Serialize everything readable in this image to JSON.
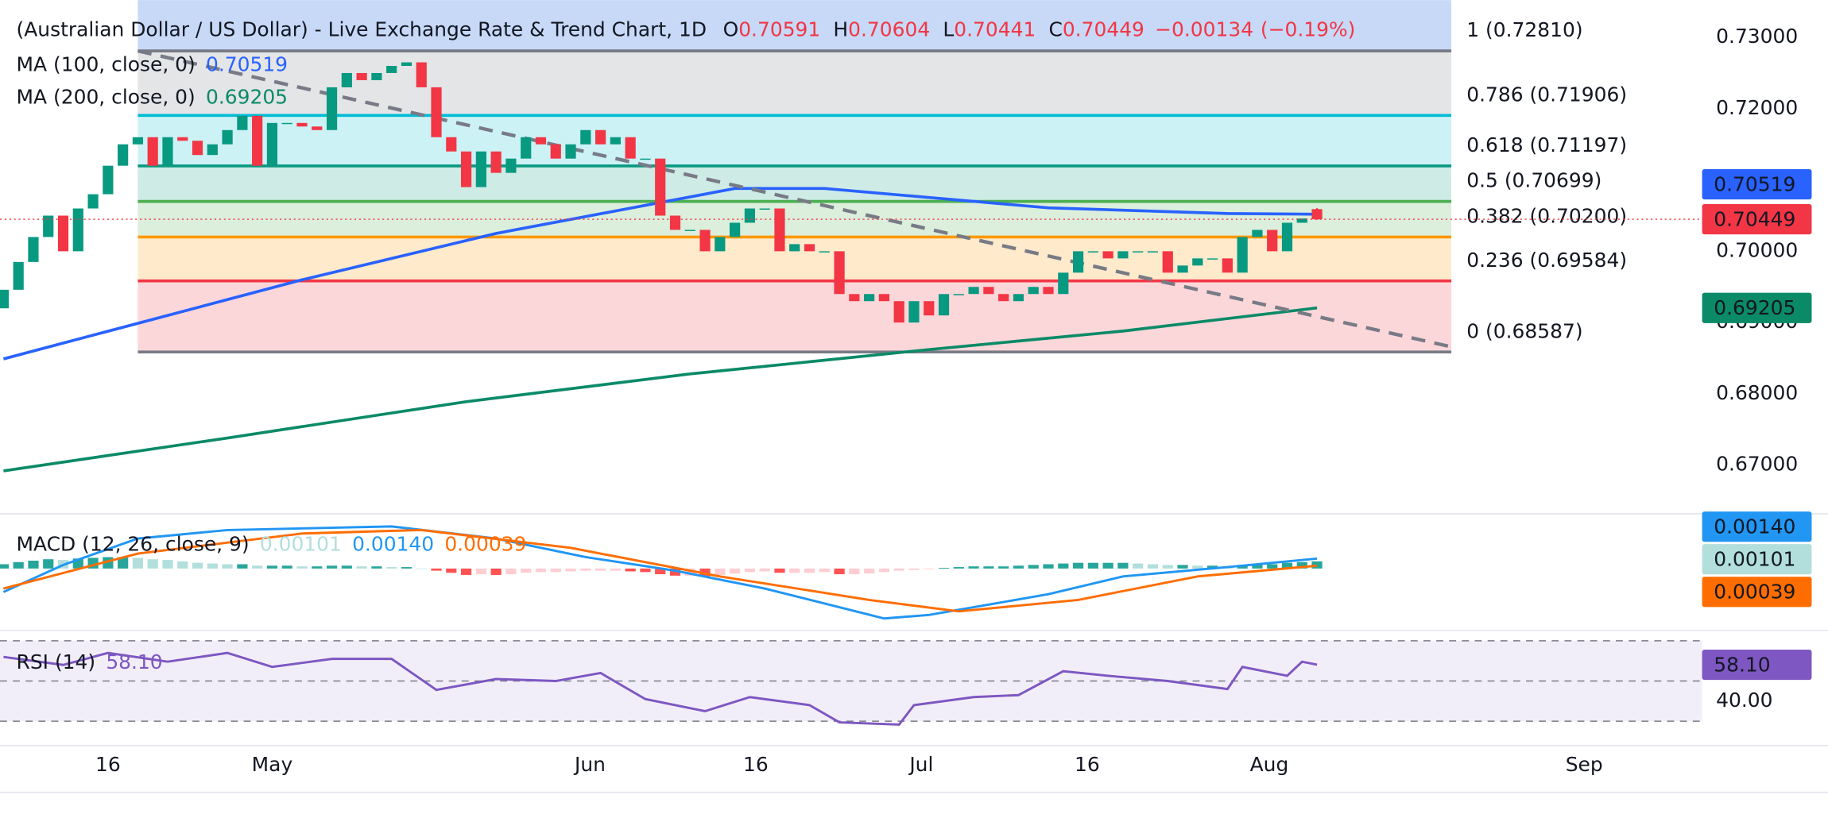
{
  "chart_data": {
    "type": "candlestick",
    "title": "(Australian Dollar / US Dollar) - Live Exchange Rate & Trend Chart, 1D",
    "ohlc_labels": [
      "O",
      "H",
      "L",
      "C"
    ],
    "last": {
      "open": 0.70591,
      "high": 0.70604,
      "low": 0.70441,
      "close": 0.70449,
      "change": "−0.00134",
      "change_percent": "(−0.19%)"
    },
    "open": [
      0.692,
      0.6946,
      0.6985,
      0.702,
      0.705,
      0.7,
      0.706,
      0.708,
      0.712,
      0.715,
      0.716,
      0.712,
      0.716,
      0.7155,
      0.7135,
      0.715,
      0.717,
      0.719,
      0.712,
      0.718,
      0.718,
      0.7175,
      0.717,
      0.723,
      0.725,
      0.724,
      0.725,
      0.726,
      0.7265,
      0.723,
      0.716,
      0.714,
      0.709,
      0.714,
      0.711,
      0.713,
      0.716,
      0.715,
      0.713,
      0.715,
      0.717,
      0.715,
      0.716,
      0.713,
      0.713,
      0.705,
      0.703,
      0.703,
      0.7,
      0.702,
      0.704,
      0.706,
      0.706,
      0.7,
      0.701,
      0.7,
      0.7,
      0.694,
      0.693,
      0.694,
      0.693,
      0.69,
      0.693,
      0.691,
      0.694,
      0.694,
      0.695,
      0.694,
      0.693,
      0.694,
      0.695,
      0.694,
      0.697,
      0.7,
      0.7,
      0.699,
      0.7,
      0.7,
      0.7,
      0.697,
      0.698,
      0.699,
      0.699,
      0.697,
      0.702,
      0.703,
      0.7,
      0.704
    ],
    "close": [
      0.6946,
      0.6985,
      0.702,
      0.705,
      0.7,
      0.706,
      0.708,
      0.712,
      0.715,
      0.716,
      0.712,
      0.716,
      0.7155,
      0.7135,
      0.715,
      0.717,
      0.719,
      0.712,
      0.718,
      0.718,
      0.7175,
      0.717,
      0.723,
      0.725,
      0.724,
      0.725,
      0.726,
      0.7265,
      0.723,
      0.716,
      0.714,
      0.709,
      0.714,
      0.711,
      0.713,
      0.716,
      0.715,
      0.713,
      0.715,
      0.717,
      0.715,
      0.716,
      0.713,
      0.713,
      0.705,
      0.703,
      0.703,
      0.7,
      0.702,
      0.704,
      0.706,
      0.706,
      0.7,
      0.701,
      0.7,
      0.7,
      0.694,
      0.693,
      0.694,
      0.693,
      0.69,
      0.693,
      0.691,
      0.694,
      0.694,
      0.695,
      0.694,
      0.693,
      0.694,
      0.695,
      0.694,
      0.697,
      0.7,
      0.7,
      0.699,
      0.7,
      0.7,
      0.7,
      0.697,
      0.698,
      0.699,
      0.699,
      0.697,
      0.702,
      0.703,
      0.7,
      0.704,
      0.7046
    ],
    "up_color": "#089981",
    "down_color": "#f23645",
    "xlim": [
      -0.234,
      113.8
    ],
    "xticks": [
      {
        "value": 7,
        "label": "16"
      },
      {
        "value": 18,
        "label": "May"
      },
      {
        "value": 39.3,
        "label": "Jun"
      },
      {
        "value": 50.4,
        "label": "16"
      },
      {
        "value": 61.5,
        "label": "Jul"
      },
      {
        "value": 72.6,
        "label": "16"
      },
      {
        "value": 84.8,
        "label": "Aug"
      },
      {
        "value": 105.9,
        "label": "Sep"
      }
    ],
    "ylim": [
      0.66333,
      0.73523
    ],
    "yticks": [
      {
        "value": 0.73,
        "label": "0.73000"
      },
      {
        "value": 0.72,
        "label": "0.72000"
      },
      {
        "value": 0.71,
        "label": "0.71000"
      },
      {
        "value": 0.7,
        "label": "0.70000"
      },
      {
        "value": 0.69,
        "label": "0.69000"
      },
      {
        "value": 0.68,
        "label": "0.68000"
      },
      {
        "value": 0.67,
        "label": "0.67000"
      }
    ],
    "moving_averages": [
      {
        "name": "MA (100, close, 0)",
        "color": "#2962ff",
        "x": [
          0,
          20,
          33,
          49,
          55,
          70,
          82,
          88
        ],
        "values": [
          0.6849,
          0.696,
          0.7025,
          0.7088,
          0.7088,
          0.7061,
          0.7053,
          0.70519
        ]
      },
      {
        "name": "MA (200, close, 0)",
        "color": "#0b8a68",
        "x": [
          0,
          15,
          31,
          46,
          62,
          75,
          88
        ],
        "values": [
          0.6692,
          0.6738,
          0.6789,
          0.6828,
          0.6862,
          0.6888,
          0.69205
        ]
      }
    ],
    "trendline": {
      "color": "#787b86",
      "x": [
        9,
        97
      ],
      "values": [
        0.7281,
        0.6866
      ]
    },
    "fibonacci": {
      "x_range": [
        9,
        97
      ],
      "top_color": "#c7d9f7",
      "levels": [
        {
          "label": "1 (0.72810)",
          "value": 0.7281,
          "color": "#787b86"
        },
        {
          "label": "0.786 (0.71906)",
          "value": 0.71906,
          "color": "#00bcd4"
        },
        {
          "label": "0.618 (0.71197)",
          "value": 0.71197,
          "color": "#089981"
        },
        {
          "label": "0.5 (0.70699)",
          "value": 0.70699,
          "color": "#4caf50"
        },
        {
          "label": "0.382 (0.70200)",
          "value": 0.702,
          "color": "#ff9800"
        },
        {
          "label": "0.236 (0.69584)",
          "value": 0.69584,
          "color": "#f23645"
        },
        {
          "label": "0 (0.68587)",
          "value": 0.68587,
          "color": "#787b86"
        }
      ]
    },
    "macd": {
      "title": "MACD (12, 26, close, 9)",
      "ylim": [
        -0.0085,
        0.0075
      ],
      "histogram": {
        "colors": [
          "#26a69a",
          "#b2dfdb",
          "#ff5252",
          "#ffcdd2"
        ],
        "values": [
          0.0006,
          0.0009,
          0.0011,
          0.0013,
          0.0012,
          0.0014,
          0.0015,
          0.0016,
          0.0016,
          0.0015,
          0.0013,
          0.0012,
          0.001,
          0.0008,
          0.0007,
          0.0006,
          0.0006,
          0.0004,
          0.0004,
          0.0004,
          0.0003,
          0.0003,
          0.0004,
          0.0004,
          0.0003,
          0.0003,
          0.0002,
          0.0002,
          0.0,
          -0.0003,
          -0.0006,
          -0.0009,
          -0.0008,
          -0.0009,
          -0.0008,
          -0.0006,
          -0.0005,
          -0.0005,
          -0.0004,
          -0.0003,
          -0.0003,
          -0.0003,
          -0.0004,
          -0.0005,
          -0.0008,
          -0.001,
          -0.001,
          -0.0011,
          -0.0009,
          -0.0007,
          -0.0005,
          -0.0004,
          -0.0006,
          -0.0006,
          -0.0006,
          -0.0005,
          -0.0008,
          -0.0008,
          -0.0007,
          -0.0005,
          -0.0003,
          -0.0002,
          -0.0001,
          0.0001,
          0.0002,
          0.0003,
          0.0003,
          0.0003,
          0.0004,
          0.0005,
          0.0006,
          0.0007,
          0.0008,
          0.0008,
          0.0008,
          0.0008,
          0.0007,
          0.0006,
          0.0005,
          0.0005,
          0.0004,
          0.0004,
          0.0003,
          0.0005,
          0.0006,
          0.0006,
          0.0008,
          0.0009,
          0.00101
        ]
      },
      "series": [
        {
          "color": "#2196f3",
          "x": [
            0,
            4,
            9,
            15,
            26,
            33,
            39,
            45,
            51,
            59,
            62,
            70,
            75,
            82,
            88
          ],
          "values": [
            -0.0033,
            0.0005,
            0.0042,
            0.0054,
            0.0059,
            0.0042,
            0.0016,
            -0.0003,
            -0.0028,
            -0.007,
            -0.0065,
            -0.0036,
            -0.0011,
            0.0002,
            0.0014
          ],
          "value_labels": [
            null,
            null,
            null,
            null,
            null,
            null,
            null,
            null,
            null,
            null,
            null,
            null,
            null,
            null,
            "0.00140"
          ]
        },
        {
          "color": "#ff6d00",
          "x": [
            0,
            9,
            20,
            28,
            38,
            48,
            58,
            64,
            72,
            80,
            88
          ],
          "values": [
            -0.0028,
            0.0021,
            0.0049,
            0.0054,
            0.0029,
            -0.0011,
            -0.0044,
            -0.006,
            -0.0044,
            -0.0011,
            0.00039
          ]
        }
      ]
    },
    "rsi": {
      "title": "RSI (14)",
      "color": "#7e57c2",
      "ylim": [
        17.83,
        74.64
      ],
      "levels": [
        70,
        50,
        30
      ],
      "yticks": [
        {
          "value": 40,
          "label": "40.00"
        }
      ],
      "x": [
        0,
        4,
        7,
        11,
        15,
        18,
        22,
        26,
        29,
        33,
        37,
        40,
        43,
        47,
        50,
        54,
        56,
        60,
        61,
        65,
        68,
        71,
        74,
        78,
        82,
        83,
        86,
        87,
        88
      ],
      "values": [
        62,
        58,
        64,
        59.6,
        64,
        57,
        61,
        61,
        45.6,
        51,
        50,
        54,
        41,
        35,
        42,
        38,
        29.4,
        28.3,
        38,
        42,
        43,
        54.9,
        52.6,
        50,
        46,
        57,
        52.6,
        59.6,
        58.1
      ],
      "value_labels": [
        null,
        null,
        null,
        null,
        null,
        null,
        null,
        null,
        null,
        null,
        null,
        null,
        null,
        null,
        null,
        null,
        null,
        null,
        null,
        null,
        null,
        null,
        null,
        null,
        null,
        null,
        null,
        null,
        "58.10"
      ]
    }
  }
}
